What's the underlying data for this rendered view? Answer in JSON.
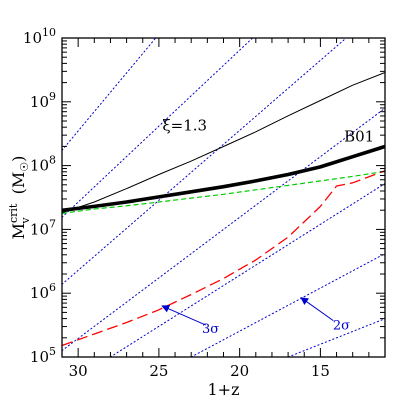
{
  "chart_data": {
    "type": "line",
    "title": "",
    "xlabel": "1+z",
    "ylabel_main": "M",
    "ylabel_sub": "v",
    "ylabel_sup": "crit",
    "ylabel_unit_open": "(M",
    "ylabel_unit_sun": "☉",
    "ylabel_unit_close": ")",
    "x_reversed": true,
    "xlim": [
      31,
      11
    ],
    "ylim_log10": [
      5,
      10
    ],
    "y_scale": "log",
    "x_ticks": [
      {
        "value": 30,
        "label": "30"
      },
      {
        "value": 25,
        "label": "25"
      },
      {
        "value": 20,
        "label": "20"
      },
      {
        "value": 15,
        "label": "15"
      }
    ],
    "y_ticks": [
      {
        "value": 5,
        "base": "10",
        "exp": "5"
      },
      {
        "value": 6,
        "base": "10",
        "exp": "6"
      },
      {
        "value": 7,
        "base": "10",
        "exp": "7"
      },
      {
        "value": 8,
        "base": "10",
        "exp": "8"
      },
      {
        "value": 9,
        "base": "10",
        "exp": "9"
      },
      {
        "value": 10,
        "base": "10",
        "exp": "10"
      }
    ],
    "series": [
      {
        "name": "B01",
        "style": "thick-solid",
        "color": "#000000",
        "points": [
          [
            31,
            7.3
          ],
          [
            29,
            7.36
          ],
          [
            27,
            7.43
          ],
          [
            25,
            7.51
          ],
          [
            23,
            7.59
          ],
          [
            21,
            7.67
          ],
          [
            19,
            7.76
          ],
          [
            17,
            7.86
          ],
          [
            15,
            7.98
          ],
          [
            13,
            8.14
          ],
          [
            11,
            8.3
          ]
        ]
      },
      {
        "name": "ξ=1.3",
        "style": "thin-solid",
        "color": "#000000",
        "points": [
          [
            31,
            7.26
          ],
          [
            29,
            7.43
          ],
          [
            27,
            7.64
          ],
          [
            25,
            7.86
          ],
          [
            23,
            8.07
          ],
          [
            21,
            8.3
          ],
          [
            19,
            8.53
          ],
          [
            17,
            8.78
          ],
          [
            15,
            9.02
          ],
          [
            13,
            9.26
          ],
          [
            11,
            9.46
          ]
        ]
      },
      {
        "name": "",
        "style": "dashed",
        "color": "#00cc00",
        "points": [
          [
            31,
            7.25
          ],
          [
            29,
            7.32
          ],
          [
            27,
            7.37
          ],
          [
            25,
            7.43
          ],
          [
            23,
            7.49
          ],
          [
            21,
            7.55
          ],
          [
            19,
            7.62
          ],
          [
            17,
            7.69
          ],
          [
            15,
            7.76
          ],
          [
            13,
            7.83
          ],
          [
            11,
            7.91
          ]
        ]
      },
      {
        "name": "",
        "style": "long-dashed",
        "color": "#ff0000",
        "points": [
          [
            31,
            5.18
          ],
          [
            29,
            5.36
          ],
          [
            27,
            5.54
          ],
          [
            25,
            5.74
          ],
          [
            23,
            5.98
          ],
          [
            21,
            6.23
          ],
          [
            19,
            6.52
          ],
          [
            17,
            6.88
          ],
          [
            15,
            7.36
          ],
          [
            14,
            7.68
          ],
          [
            13,
            7.73
          ],
          [
            11,
            7.92
          ]
        ]
      }
    ],
    "sigma_lines": {
      "color": "#0000cc",
      "style": "dotted",
      "lines": [
        [
          [
            31,
            8.24
          ],
          [
            25.2,
            10
          ]
        ],
        [
          [
            31,
            7.19
          ],
          [
            19.2,
            10
          ]
        ],
        [
          [
            31,
            6.14
          ],
          [
            13.4,
            10
          ]
        ],
        [
          [
            31,
            5.1
          ],
          [
            11,
            8.9
          ]
        ],
        [
          [
            28,
            5
          ],
          [
            11,
            7.72
          ]
        ],
        [
          [
            23,
            5
          ],
          [
            11,
            6.62
          ]
        ],
        [
          [
            17,
            5
          ],
          [
            11,
            5.6
          ]
        ]
      ]
    },
    "annotations": [
      {
        "text": "ξ=1.3",
        "x": 23.4,
        "y_log10": 8.55
      },
      {
        "text": "B01",
        "x": 12.6,
        "y_log10": 8.38
      },
      {
        "text": "3σ",
        "x": 21.8,
        "y_log10": 5.38,
        "color": "#0000cc"
      },
      {
        "text": "2σ",
        "x": 13.7,
        "y_log10": 5.43,
        "color": "#0000cc"
      }
    ],
    "arrows": [
      {
        "label": "3σ",
        "from": [
          22.1,
          5.5
        ],
        "to": [
          24.8,
          5.8
        ],
        "color": "#0000cc"
      },
      {
        "label": "2σ",
        "from": [
          14.2,
          5.57
        ],
        "to": [
          16.2,
          5.93
        ],
        "color": "#0000cc"
      }
    ]
  }
}
